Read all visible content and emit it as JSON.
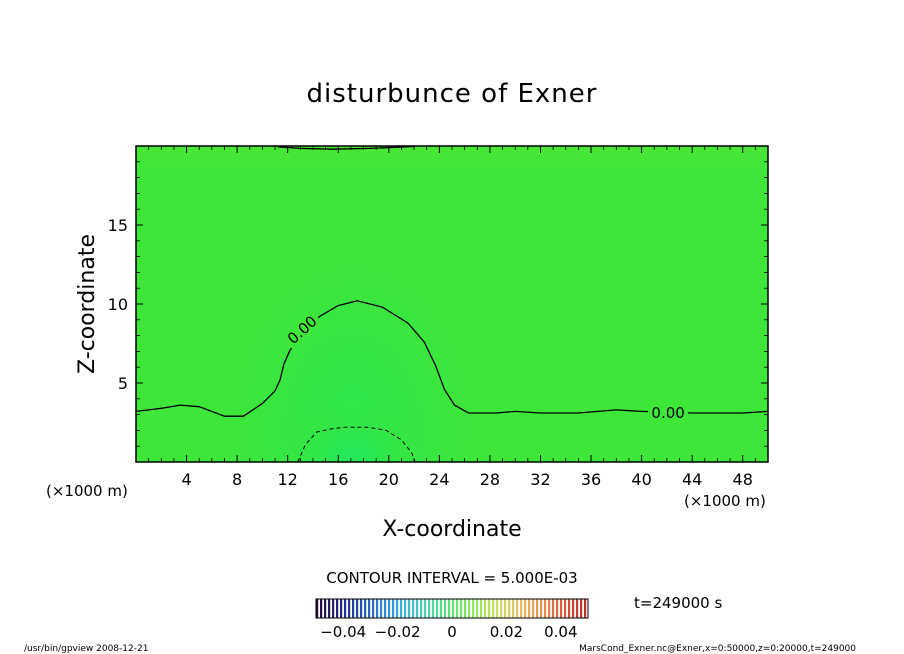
{
  "chart_data": {
    "type": "contour",
    "title": "disturbunce of Exner",
    "xlabel": "X-coordinate",
    "ylabel": "Z-coordinate",
    "x_unit_left": "(×1000 m)",
    "x_unit_right": "(×1000 m)",
    "xlim": [
      0,
      50
    ],
    "ylim": [
      0,
      20
    ],
    "x_ticks": [
      4,
      8,
      12,
      16,
      20,
      24,
      28,
      32,
      36,
      40,
      44,
      48
    ],
    "x_tick_labels": [
      "4",
      "8",
      "12",
      "16",
      "20",
      "24",
      "28",
      "32",
      "36",
      "40",
      "44",
      "48"
    ],
    "y_ticks": [
      5,
      10,
      15
    ],
    "y_tick_labels": [
      "5",
      "10",
      "15"
    ],
    "contour_interval_text": "CONTOUR INTERVAL = 5.000E-03",
    "time_text": "t=249000 s",
    "colorbar": {
      "range": [
        -0.05,
        0.05
      ],
      "ticks": [
        -0.04,
        -0.02,
        0,
        0.02,
        0.04
      ],
      "tick_labels": [
        "−0.04",
        "−0.02",
        "0",
        "0.02",
        "0.04"
      ],
      "colors": [
        "#2a0a3c",
        "#23237a",
        "#1f4fb0",
        "#2f86d6",
        "#3fb6d8",
        "#4fd2a8",
        "#5ee07a",
        "#8ee85a",
        "#c8e060",
        "#e8c060",
        "#e89050",
        "#d85838",
        "#b82a28"
      ]
    },
    "contours": [
      {
        "level": 0.0,
        "label": "0.00",
        "style": "solid",
        "points": [
          [
            0,
            3.2
          ],
          [
            2,
            3.4
          ],
          [
            3.5,
            3.6
          ],
          [
            5,
            3.5
          ],
          [
            7,
            2.9
          ],
          [
            8.5,
            2.9
          ],
          [
            10,
            3.7
          ],
          [
            11,
            4.5
          ],
          [
            11.4,
            5.2
          ],
          [
            11.7,
            6.2
          ],
          [
            12.2,
            7.1
          ],
          [
            13.2,
            7.9
          ],
          [
            14.5,
            9.2
          ],
          [
            16,
            9.9
          ],
          [
            17.5,
            10.2
          ],
          [
            19.5,
            9.8
          ],
          [
            21.5,
            8.8
          ],
          [
            22.8,
            7.6
          ],
          [
            23.7,
            6.1
          ],
          [
            24.4,
            4.6
          ],
          [
            25.2,
            3.6
          ],
          [
            26.3,
            3.1
          ],
          [
            28.5,
            3.1
          ],
          [
            30,
            3.2
          ],
          [
            32,
            3.1
          ],
          [
            35,
            3.1
          ],
          [
            38,
            3.3
          ],
          [
            40,
            3.2
          ],
          [
            44,
            3.1
          ],
          [
            48,
            3.1
          ],
          [
            50,
            3.2
          ]
        ]
      },
      {
        "level": -0.005,
        "label": "",
        "style": "dashed",
        "points": [
          [
            12.8,
            0.0
          ],
          [
            13.4,
            1.1
          ],
          [
            14.3,
            1.9
          ],
          [
            15.5,
            2.1
          ],
          [
            16.5,
            2.2
          ],
          [
            18.3,
            2.2
          ],
          [
            19.8,
            2.0
          ],
          [
            21.0,
            1.4
          ],
          [
            21.8,
            0.6
          ],
          [
            22.1,
            0.0
          ]
        ]
      },
      {
        "level": 0.0,
        "label": "",
        "style": "solid",
        "points": [
          [
            11.2,
            19.95
          ],
          [
            13,
            19.85
          ],
          [
            15.5,
            19.8
          ],
          [
            18.5,
            19.85
          ],
          [
            20.5,
            19.92
          ],
          [
            22.1,
            19.98
          ]
        ]
      }
    ],
    "inline_labels": [
      {
        "text": "0.00",
        "x": 13.1,
        "y": 8.4,
        "angle": -42
      },
      {
        "text": "0.00",
        "x": 42.1,
        "y": 3.15,
        "angle": 0
      }
    ]
  },
  "footer": {
    "left": "/usr/bin/gpview   2008-12-21",
    "right": "MarsCond_Exner.nc@Exner,x=0:50000,z=0:20000,t=249000"
  }
}
